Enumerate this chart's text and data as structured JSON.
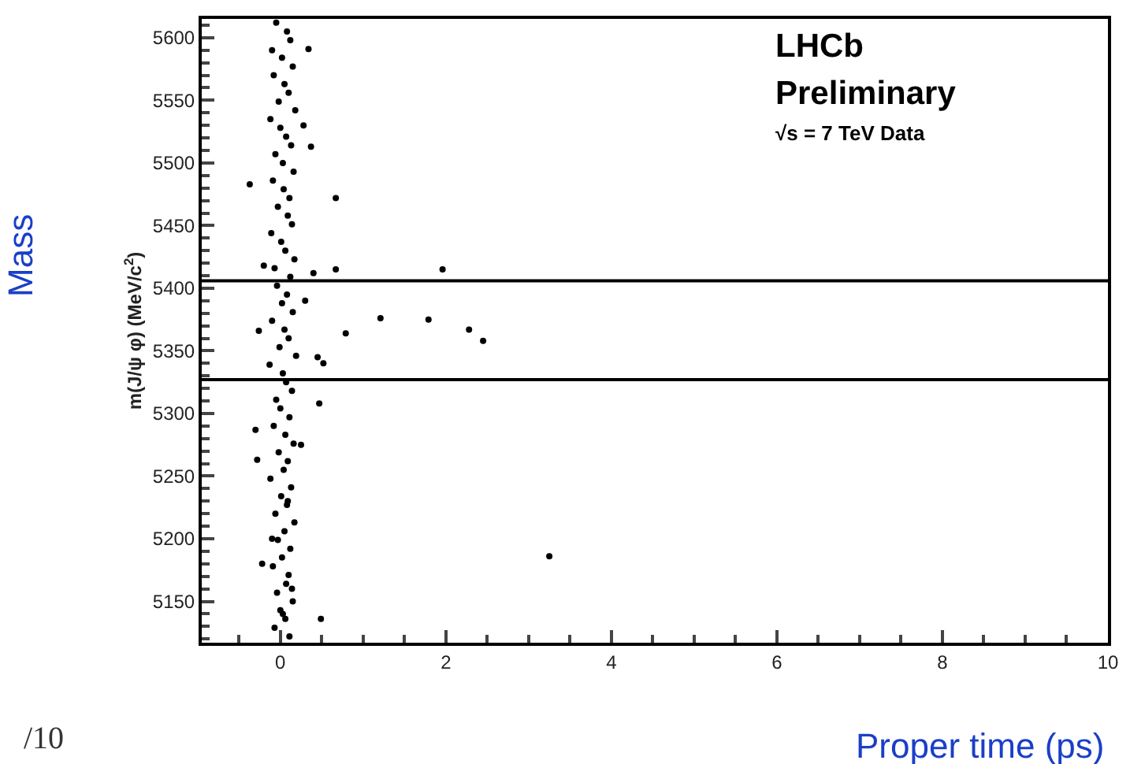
{
  "chart_data": {
    "type": "scatter",
    "xlabel": "Proper time (ps)",
    "ylabel": "m(J/ψ φ) (MeV/c$^{2}$)",
    "annotations": [
      "LHCb",
      "Preliminary",
      "√s = 7 TeV Data",
      "Mass",
      "/10"
    ],
    "xlim": [
      -0.95,
      10
    ],
    "ylim": [
      5117,
      5615
    ],
    "xticks": [
      0,
      2,
      4,
      6,
      8,
      10
    ],
    "yticks": [
      5150,
      5200,
      5250,
      5300,
      5350,
      5400,
      5450,
      5500,
      5550,
      5600
    ],
    "ref_lines": [
      {
        "axis": "y",
        "value": 5406,
        "color": "#000000"
      },
      {
        "axis": "y",
        "value": 5327,
        "color": "#000000"
      }
    ],
    "series": [
      {
        "color": "#000000",
        "x": [
          -0.37,
          0.67,
          1.96,
          1.21,
          1.79,
          2.28,
          2.45,
          0.67,
          0.79,
          -0.26,
          0.37,
          0.34,
          3.25,
          0.47,
          -0.3,
          -0.28,
          0.49,
          0.45,
          0.52,
          0.3,
          0.25,
          0.4,
          0.28,
          -0.2,
          -0.22,
          -0.05,
          0.08,
          0.12,
          -0.1,
          0.02,
          0.15,
          -0.08,
          0.05,
          0.1,
          -0.02,
          0.18,
          -0.12,
          0.0,
          0.07,
          0.13,
          -0.06,
          0.03,
          0.16,
          -0.09,
          0.04,
          0.11,
          -0.03,
          0.09,
          0.14,
          -0.11,
          0.01,
          0.06,
          0.17,
          -0.07,
          0.12,
          -0.04,
          0.08,
          0.02,
          0.15,
          -0.1,
          0.05,
          0.1,
          -0.01,
          0.19,
          -0.13,
          0.03,
          0.07,
          0.14,
          -0.05,
          0.0,
          0.11,
          -0.08,
          0.06,
          0.16,
          -0.02,
          0.09,
          0.04,
          -0.12,
          0.13,
          0.01,
          0.08,
          -0.06,
          0.17,
          0.05,
          -0.03,
          0.12,
          0.02,
          -0.09,
          0.1,
          0.07,
          -0.04,
          0.15,
          0.0,
          0.06,
          -0.07,
          0.11,
          0.03,
          0.14,
          -0.1,
          0.09
        ],
        "values": [
          5483,
          5472,
          5415,
          5376,
          5375,
          5367,
          5358,
          5415,
          5364,
          5366,
          5513,
          5591,
          5186,
          5308,
          5287,
          5263,
          5136,
          5345,
          5340,
          5390,
          5275,
          5412,
          5530,
          5418,
          5180,
          5612,
          5605,
          5598,
          5590,
          5584,
          5577,
          5570,
          5563,
          5556,
          5549,
          5542,
          5535,
          5528,
          5521,
          5514,
          5507,
          5500,
          5493,
          5486,
          5479,
          5472,
          5465,
          5458,
          5451,
          5444,
          5437,
          5430,
          5423,
          5416,
          5409,
          5402,
          5395,
          5388,
          5381,
          5374,
          5367,
          5360,
          5353,
          5346,
          5339,
          5332,
          5325,
          5318,
          5311,
          5304,
          5297,
          5290,
          5283,
          5276,
          5269,
          5262,
          5255,
          5248,
          5241,
          5234,
          5227,
          5220,
          5213,
          5206,
          5199,
          5192,
          5185,
          5178,
          5171,
          5164,
          5157,
          5150,
          5143,
          5136,
          5129,
          5122,
          5140,
          5160,
          5200,
          5230
        ]
      }
    ]
  }
}
